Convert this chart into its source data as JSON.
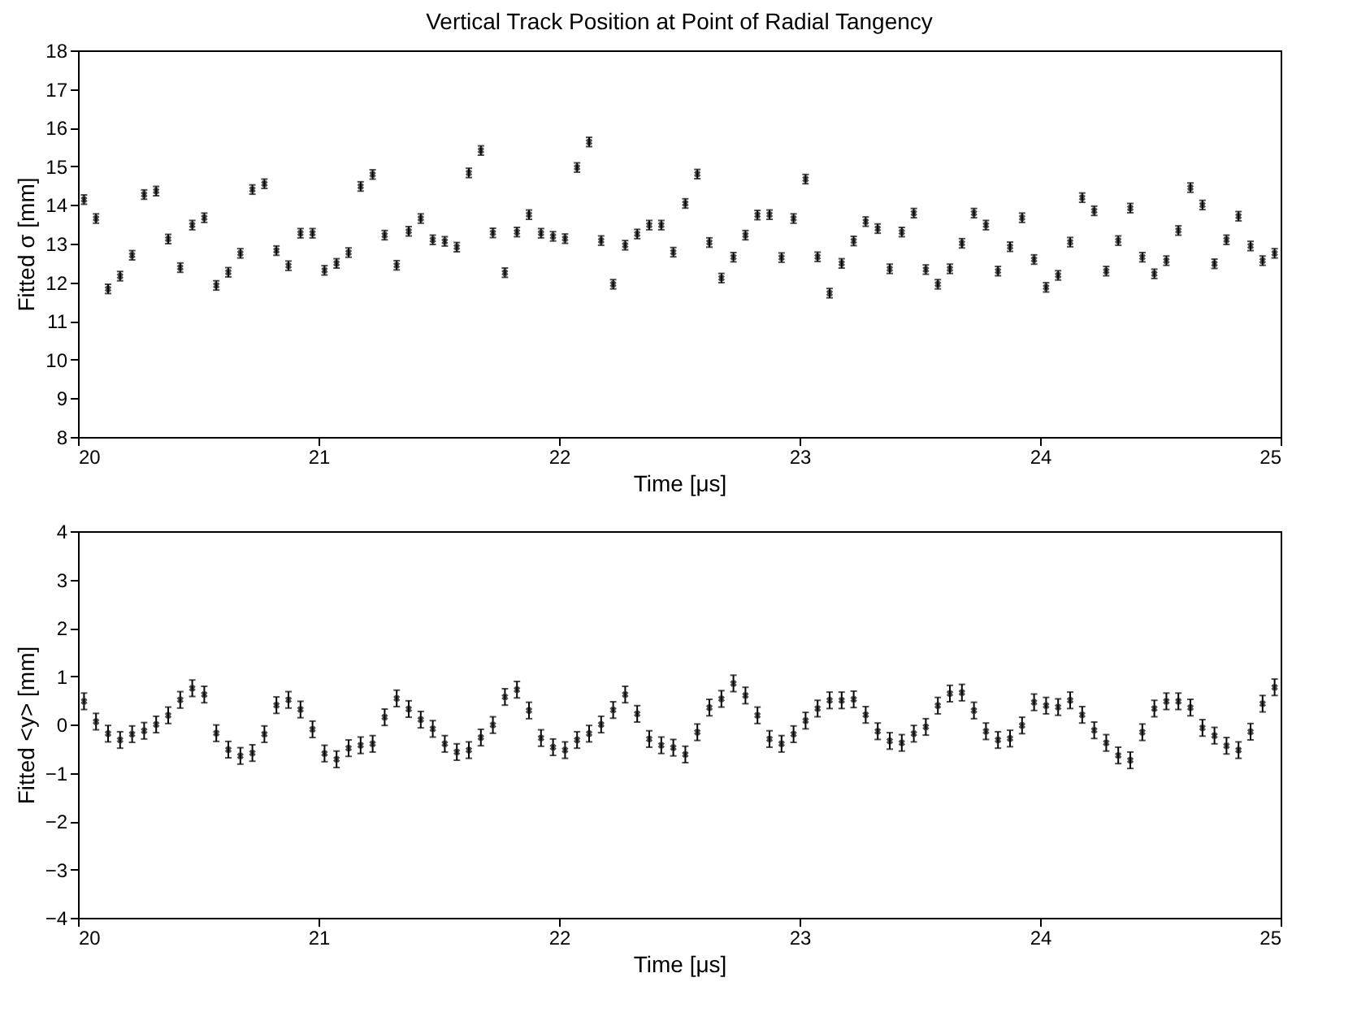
{
  "chart_data": [
    {
      "type": "scatter",
      "title": "Vertical Track Position at Point of Radial Tangency",
      "xlabel": "Time [μs]",
      "ylabel": "Fitted σ [mm]",
      "xlim": [
        20,
        25
      ],
      "xticks": [
        20,
        21,
        22,
        23,
        24,
        25
      ],
      "ylim": [
        8,
        18
      ],
      "yticks": [
        8,
        9,
        10,
        11,
        12,
        13,
        14,
        15,
        16,
        17,
        18
      ],
      "grid": false,
      "marker": "cross",
      "x": [
        20.025,
        20.075,
        20.125,
        20.175,
        20.225,
        20.275,
        20.325,
        20.375,
        20.425,
        20.475,
        20.525,
        20.575,
        20.625,
        20.675,
        20.725,
        20.775,
        20.825,
        20.875,
        20.925,
        20.975,
        21.025,
        21.075,
        21.125,
        21.175,
        21.225,
        21.275,
        21.325,
        21.375,
        21.425,
        21.475,
        21.525,
        21.575,
        21.625,
        21.675,
        21.725,
        21.775,
        21.825,
        21.875,
        21.925,
        21.975,
        22.025,
        22.075,
        22.125,
        22.175,
        22.225,
        22.275,
        22.325,
        22.375,
        22.425,
        22.475,
        22.525,
        22.575,
        22.625,
        22.675,
        22.725,
        22.775,
        22.825,
        22.875,
        22.925,
        22.975,
        23.025,
        23.075,
        23.125,
        23.175,
        23.225,
        23.275,
        23.325,
        23.375,
        23.425,
        23.475,
        23.525,
        23.575,
        23.625,
        23.675,
        23.725,
        23.775,
        23.825,
        23.875,
        23.925,
        23.975,
        24.025,
        24.075,
        24.125,
        24.175,
        24.225,
        24.275,
        24.325,
        24.375,
        24.425,
        24.475,
        24.525,
        24.575,
        24.625,
        24.675,
        24.725,
        24.775,
        24.825,
        24.875,
        24.925,
        24.975
      ],
      "series": [
        {
          "color": "#000000",
          "values": [
            14.14,
            13.65,
            11.83,
            12.16,
            12.7,
            14.27,
            14.36,
            13.12,
            12.38,
            13.48,
            13.67,
            11.92,
            12.26,
            12.75,
            14.4,
            14.55,
            12.82,
            12.43,
            13.27,
            13.27,
            12.31,
            12.49,
            12.77,
            14.48,
            14.79,
            13.22,
            12.44,
            13.32,
            13.65,
            13.1,
            13.06,
            12.91,
            14.83,
            15.41,
            13.28,
            12.25,
            13.3,
            13.75,
            13.27,
            13.19,
            13.13,
            14.97,
            15.63,
            13.08,
            11.95,
            12.96,
            13.25,
            13.48,
            13.48,
            12.78,
            14.04,
            14.8,
            13.03,
            12.11,
            12.65,
            13.22,
            13.74,
            13.75,
            12.64,
            13.65,
            14.67,
            12.66,
            11.72,
            12.49,
            13.07,
            13.57,
            13.39,
            12.35,
            13.3,
            13.79,
            12.33,
            11.95,
            12.35,
            13.01,
            13.79,
            13.48,
            12.29,
            12.92,
            13.67,
            12.59,
            11.87,
            12.18,
            13.04,
            14.19,
            13.85,
            12.29,
            13.08,
            13.92,
            12.65,
            12.22,
            12.56,
            13.34,
            14.45,
            14.0,
            12.48,
            13.1,
            13.71,
            12.94,
            12.56,
            12.75
          ],
          "errors": [
            0.12,
            0.12,
            0.12,
            0.12,
            0.12,
            0.12,
            0.12,
            0.12,
            0.12,
            0.12,
            0.12,
            0.12,
            0.12,
            0.12,
            0.12,
            0.12,
            0.12,
            0.12,
            0.12,
            0.12,
            0.12,
            0.12,
            0.12,
            0.12,
            0.12,
            0.12,
            0.12,
            0.12,
            0.12,
            0.12,
            0.12,
            0.12,
            0.12,
            0.12,
            0.12,
            0.12,
            0.12,
            0.12,
            0.12,
            0.12,
            0.12,
            0.12,
            0.12,
            0.12,
            0.12,
            0.12,
            0.12,
            0.12,
            0.12,
            0.12,
            0.12,
            0.12,
            0.12,
            0.12,
            0.12,
            0.12,
            0.12,
            0.12,
            0.12,
            0.12,
            0.12,
            0.12,
            0.12,
            0.12,
            0.12,
            0.12,
            0.12,
            0.12,
            0.12,
            0.12,
            0.12,
            0.12,
            0.12,
            0.12,
            0.12,
            0.12,
            0.12,
            0.12,
            0.12,
            0.12,
            0.12,
            0.12,
            0.12,
            0.12,
            0.12,
            0.12,
            0.12,
            0.12,
            0.12,
            0.12,
            0.12,
            0.12,
            0.12,
            0.12,
            0.12,
            0.12,
            0.12,
            0.12,
            0.12,
            0.12
          ]
        }
      ]
    },
    {
      "type": "scatter",
      "xlabel": "Time [μs]",
      "ylabel": "Fitted <y> [mm]",
      "xlim": [
        20,
        25
      ],
      "xticks": [
        20,
        21,
        22,
        23,
        24,
        25
      ],
      "ylim": [
        -4,
        4
      ],
      "yticks": [
        -4,
        -3,
        -2,
        -1,
        0,
        1,
        2,
        3,
        4
      ],
      "grid": false,
      "marker": "cross",
      "x": [
        20.025,
        20.075,
        20.125,
        20.175,
        20.225,
        20.275,
        20.325,
        20.375,
        20.425,
        20.475,
        20.525,
        20.575,
        20.625,
        20.675,
        20.725,
        20.775,
        20.825,
        20.875,
        20.925,
        20.975,
        21.025,
        21.075,
        21.125,
        21.175,
        21.225,
        21.275,
        21.325,
        21.375,
        21.425,
        21.475,
        21.525,
        21.575,
        21.625,
        21.675,
        21.725,
        21.775,
        21.825,
        21.875,
        21.925,
        21.975,
        22.025,
        22.075,
        22.125,
        22.175,
        22.225,
        22.275,
        22.325,
        22.375,
        22.425,
        22.475,
        22.525,
        22.575,
        22.625,
        22.675,
        22.725,
        22.775,
        22.825,
        22.875,
        22.925,
        22.975,
        23.025,
        23.075,
        23.125,
        23.175,
        23.225,
        23.275,
        23.325,
        23.375,
        23.425,
        23.475,
        23.525,
        23.575,
        23.625,
        23.675,
        23.725,
        23.775,
        23.825,
        23.875,
        23.925,
        23.975,
        24.025,
        24.075,
        24.125,
        24.175,
        24.225,
        24.275,
        24.325,
        24.375,
        24.425,
        24.475,
        24.525,
        24.575,
        24.625,
        24.675,
        24.725,
        24.775,
        24.825,
        24.875,
        24.925,
        24.975
      ],
      "series": [
        {
          "color": "#000000",
          "values": [
            0.48,
            0.06,
            -0.19,
            -0.32,
            -0.2,
            -0.13,
            0.0,
            0.19,
            0.51,
            0.75,
            0.62,
            -0.18,
            -0.52,
            -0.65,
            -0.59,
            -0.2,
            0.4,
            0.51,
            0.31,
            -0.1,
            -0.6,
            -0.72,
            -0.49,
            -0.43,
            -0.4,
            0.15,
            0.54,
            0.32,
            0.1,
            -0.09,
            -0.4,
            -0.57,
            -0.53,
            -0.27,
            -0.01,
            0.57,
            0.72,
            0.29,
            -0.28,
            -0.47,
            -0.53,
            -0.32,
            -0.19,
            0.0,
            0.3,
            0.62,
            0.22,
            -0.3,
            -0.43,
            -0.48,
            -0.62,
            -0.16,
            0.35,
            0.53,
            0.85,
            0.6,
            0.19,
            -0.3,
            -0.4,
            -0.2,
            0.08,
            0.33,
            0.5,
            0.5,
            0.52,
            0.2,
            -0.14,
            -0.34,
            -0.38,
            -0.19,
            -0.05,
            0.39,
            0.64,
            0.66,
            0.29,
            -0.14,
            -0.32,
            -0.29,
            -0.02,
            0.46,
            0.39,
            0.36,
            0.5,
            0.2,
            -0.12,
            -0.38,
            -0.64,
            -0.74,
            -0.16,
            0.33,
            0.48,
            0.48,
            0.35,
            -0.07,
            -0.23,
            -0.44,
            -0.53,
            -0.15,
            0.43,
            0.77
          ],
          "errors": [
            0.17,
            0.17,
            0.17,
            0.17,
            0.17,
            0.17,
            0.17,
            0.17,
            0.17,
            0.17,
            0.17,
            0.17,
            0.17,
            0.17,
            0.17,
            0.17,
            0.17,
            0.17,
            0.17,
            0.17,
            0.17,
            0.17,
            0.17,
            0.17,
            0.17,
            0.17,
            0.17,
            0.17,
            0.17,
            0.17,
            0.17,
            0.17,
            0.17,
            0.17,
            0.17,
            0.17,
            0.17,
            0.17,
            0.17,
            0.17,
            0.17,
            0.17,
            0.17,
            0.17,
            0.17,
            0.17,
            0.17,
            0.17,
            0.17,
            0.17,
            0.17,
            0.17,
            0.17,
            0.17,
            0.17,
            0.17,
            0.17,
            0.17,
            0.17,
            0.17,
            0.17,
            0.17,
            0.17,
            0.17,
            0.17,
            0.17,
            0.17,
            0.17,
            0.17,
            0.17,
            0.17,
            0.17,
            0.17,
            0.17,
            0.17,
            0.17,
            0.17,
            0.17,
            0.17,
            0.17,
            0.17,
            0.17,
            0.17,
            0.17,
            0.17,
            0.17,
            0.17,
            0.17,
            0.17,
            0.17,
            0.17,
            0.17,
            0.17,
            0.17,
            0.17,
            0.17,
            0.17,
            0.17,
            0.17,
            0.17
          ]
        }
      ]
    }
  ]
}
